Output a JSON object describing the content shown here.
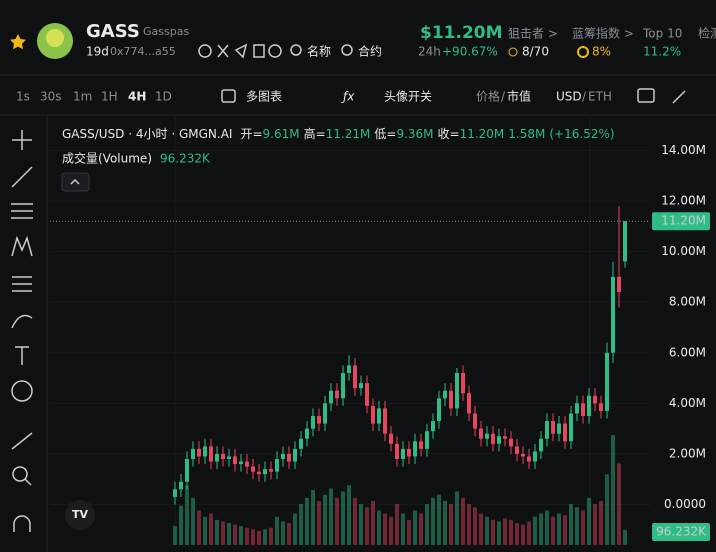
{
  "header": {
    "name": "GASS",
    "subtitle": "Gasspas",
    "age": "19d",
    "address": "0x774...a55",
    "search_name": "名称",
    "search_contract": "合约",
    "price": "$11.20M",
    "period": "24h",
    "change": "+90.67%",
    "snipers_label": "狙击者 >",
    "snipers": "8/70",
    "bluechip_label": "蓝筹指数 >",
    "bluechip": "8%",
    "top10_label": "Top 10",
    "top10": "11.2%",
    "audit_label": "检测"
  },
  "toolbar": {
    "intervals": [
      "1s",
      "30s",
      "1m",
      "1H",
      "4H",
      "1D"
    ],
    "multi_chart": "多图表",
    "avatar_toggle": "头像开关",
    "price": "价格",
    "separator": "/",
    "market_cap": "市值",
    "usd": "USD",
    "eth": "ETH"
  },
  "legend": {
    "symbol": "GASS/USD · 4小时 · GMGN.AI",
    "ohlc": [
      {
        "label": "开=",
        "value": "9.61M"
      },
      {
        "label": "高=",
        "value": "11.21M"
      },
      {
        "label": "低=",
        "value": "9.36M"
      },
      {
        "label": "收=",
        "value": "11.20M"
      }
    ],
    "change": "1.58M",
    "change_pct": "(+16.52%)",
    "volume_label": "成交量(Volume)",
    "volume_value": "96.232K"
  },
  "chart_data": {
    "type": "candlestick",
    "up_color": "#2ebd85",
    "down_color": "#e8455f",
    "ylim": [
      -1.6,
      15.4
    ],
    "yticks": [
      {
        "value": 0,
        "label": "0.0000"
      },
      {
        "value": 2,
        "label": "2.00M"
      },
      {
        "value": 4,
        "label": "4.00M"
      },
      {
        "value": 6,
        "label": "6.00M"
      },
      {
        "value": 8,
        "label": "8.00M"
      },
      {
        "value": 10,
        "label": "10.00M"
      },
      {
        "value": 12,
        "label": "12.00M"
      },
      {
        "value": 14,
        "label": "14.00M"
      }
    ],
    "open": [
      0.3,
      0.6,
      0.9,
      1.8,
      2.2,
      1.9,
      2.3,
      1.7,
      2.0,
      1.8,
      1.9,
      1.6,
      1.7,
      1.5,
      1.3,
      1.2,
      1.4,
      1.3,
      1.8,
      2.0,
      1.7,
      2.2,
      2.6,
      3.0,
      3.5,
      3.2,
      4.0,
      4.5,
      4.2,
      5.2,
      5.5,
      4.6,
      4.8,
      3.9,
      3.2,
      3.8,
      2.8,
      2.4,
      1.8,
      2.2,
      1.9,
      2.5,
      2.2,
      2.9,
      3.3,
      4.2,
      4.5,
      3.8,
      5.2,
      4.4,
      3.6,
      3.0,
      2.6,
      2.8,
      2.4,
      2.7,
      2.6,
      2.3,
      2.0,
      1.9,
      1.7,
      2.1,
      2.6,
      3.3,
      2.8,
      3.2,
      2.5,
      3.6,
      4.0,
      3.5,
      4.3,
      4.0,
      3.7,
      6.0,
      9.0,
      9.61
    ],
    "high": [
      0.9,
      1.2,
      2.1,
      2.5,
      2.5,
      2.6,
      2.6,
      2.3,
      2.3,
      2.2,
      2.2,
      2.0,
      2.0,
      1.8,
      1.6,
      1.7,
      1.7,
      2.1,
      2.3,
      2.3,
      2.5,
      2.9,
      3.3,
      3.8,
      3.8,
      4.3,
      4.8,
      4.8,
      5.5,
      5.9,
      5.8,
      5.1,
      5.1,
      4.2,
      4.1,
      4.1,
      3.1,
      2.7,
      2.5,
      2.5,
      2.8,
      2.8,
      3.2,
      3.6,
      4.5,
      4.8,
      4.8,
      5.4,
      5.5,
      4.7,
      3.9,
      3.3,
      3.1,
      3.1,
      3.0,
      3.0,
      2.9,
      2.6,
      2.3,
      2.2,
      2.4,
      2.9,
      3.6,
      3.6,
      3.5,
      3.5,
      3.9,
      4.3,
      4.3,
      4.6,
      4.6,
      4.3,
      6.4,
      9.6,
      11.8,
      11.21
    ],
    "low": [
      0.0,
      0.3,
      0.6,
      1.5,
      1.6,
      1.6,
      1.4,
      1.4,
      1.5,
      1.5,
      1.3,
      1.3,
      1.2,
      1.0,
      0.9,
      0.9,
      1.0,
      1.0,
      1.5,
      1.4,
      1.4,
      1.9,
      2.3,
      2.7,
      2.9,
      2.9,
      3.7,
      3.9,
      3.9,
      4.9,
      4.3,
      4.3,
      3.6,
      2.9,
      2.9,
      2.5,
      2.1,
      1.5,
      1.5,
      1.6,
      1.6,
      1.9,
      1.9,
      2.6,
      3.0,
      3.9,
      3.5,
      3.5,
      4.1,
      3.3,
      2.7,
      2.3,
      2.3,
      2.1,
      2.1,
      2.3,
      2.0,
      1.7,
      1.6,
      1.4,
      1.4,
      1.8,
      2.3,
      2.5,
      2.5,
      2.2,
      2.2,
      3.3,
      3.2,
      3.2,
      3.7,
      3.4,
      3.4,
      5.6,
      7.8,
      9.36
    ],
    "close": [
      0.6,
      0.9,
      1.8,
      2.2,
      1.9,
      2.3,
      1.7,
      2.0,
      1.8,
      1.9,
      1.6,
      1.7,
      1.5,
      1.3,
      1.2,
      1.4,
      1.3,
      1.8,
      2.0,
      1.7,
      2.2,
      2.6,
      3.0,
      3.5,
      3.2,
      4.0,
      4.5,
      4.2,
      5.2,
      5.5,
      4.6,
      4.8,
      3.9,
      3.2,
      3.8,
      2.8,
      2.4,
      1.8,
      2.2,
      1.9,
      2.5,
      2.2,
      2.9,
      3.3,
      4.2,
      4.5,
      3.8,
      5.2,
      4.4,
      3.6,
      3.0,
      2.6,
      2.8,
      2.4,
      2.7,
      2.6,
      2.3,
      2.0,
      1.9,
      1.7,
      2.1,
      2.6,
      3.3,
      2.8,
      3.2,
      2.5,
      3.6,
      4.0,
      3.5,
      4.3,
      4.0,
      3.7,
      6.0,
      9.0,
      8.4,
      11.2
    ],
    "volume": [
      120,
      250,
      380,
      300,
      220,
      180,
      200,
      160,
      150,
      140,
      130,
      120,
      110,
      100,
      90,
      100,
      110,
      180,
      150,
      140,
      200,
      260,
      300,
      350,
      280,
      320,
      360,
      300,
      340,
      380,
      300,
      260,
      240,
      280,
      220,
      200,
      180,
      260,
      200,
      160,
      220,
      200,
      260,
      300,
      320,
      280,
      260,
      340,
      300,
      260,
      240,
      200,
      180,
      160,
      150,
      170,
      160,
      140,
      130,
      150,
      180,
      200,
      220,
      180,
      200,
      190,
      260,
      240,
      220,
      300,
      260,
      280,
      450,
      700,
      520,
      96.232
    ],
    "volume_label": "96.232K",
    "price_line": {
      "value": 11.2,
      "label": "11.20M"
    }
  }
}
